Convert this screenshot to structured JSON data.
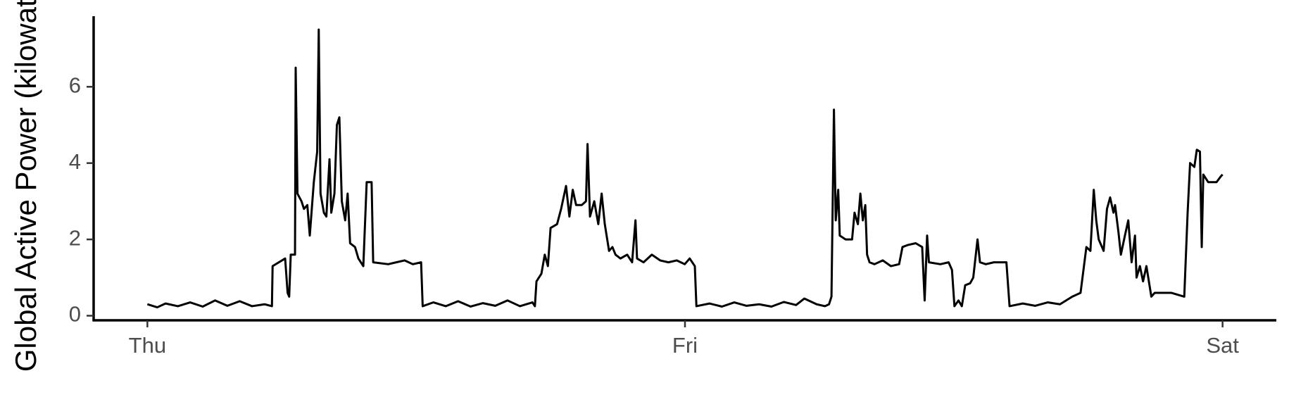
{
  "chart_data": {
    "type": "line",
    "y_label": "Global Active Power (kilowatts)",
    "xlim": [
      -2.4,
      50.4
    ],
    "xticks": [
      {
        "value": 0,
        "label": "Thu"
      },
      {
        "value": 24,
        "label": "Fri"
      },
      {
        "value": 48,
        "label": "Sat"
      }
    ],
    "ylim": [
      -0.12,
      7.85
    ],
    "yticks": [
      0,
      2,
      4,
      6
    ],
    "grid": false,
    "color": "#000000",
    "x": [
      0,
      0.44,
      0.81,
      1.36,
      1.91,
      2.47,
      3.02,
      3.57,
      4.12,
      4.67,
      5.23,
      5.56,
      5.59,
      6.15,
      6.26,
      6.33,
      6.4,
      6.59,
      6.62,
      6.7,
      6.88,
      6.99,
      7.14,
      7.25,
      7.43,
      7.58,
      7.65,
      7.73,
      7.88,
      7.99,
      8.13,
      8.21,
      8.35,
      8.46,
      8.57,
      8.68,
      8.83,
      8.94,
      9.05,
      9.27,
      9.42,
      9.64,
      9.79,
      10.01,
      10.08,
      10.75,
      11.11,
      11.48,
      11.85,
      12.22,
      12.29,
      12.77,
      13.32,
      13.87,
      14.43,
      14.98,
      15.53,
      16.08,
      16.63,
      17.19,
      17.3,
      17.37,
      17.59,
      17.74,
      17.88,
      18.0,
      18.29,
      18.47,
      18.69,
      18.84,
      18.99,
      19.14,
      19.39,
      19.58,
      19.65,
      19.76,
      19.95,
      20.13,
      20.28,
      20.42,
      20.61,
      20.76,
      20.9,
      21.12,
      21.42,
      21.64,
      21.79,
      21.86,
      22.15,
      22.52,
      22.89,
      23.26,
      23.63,
      23.99,
      24.21,
      24.44,
      24.51,
      25.1,
      25.65,
      26.2,
      26.75,
      27.31,
      27.86,
      28.41,
      28.96,
      29.33,
      29.88,
      30.25,
      30.43,
      30.54,
      30.65,
      30.73,
      30.84,
      30.91,
      31.17,
      31.46,
      31.57,
      31.72,
      31.83,
      31.94,
      32.05,
      32.13,
      32.24,
      32.46,
      32.83,
      33.19,
      33.56,
      33.71,
      33.93,
      34.3,
      34.59,
      34.7,
      34.81,
      34.89,
      35.4,
      35.77,
      35.92,
      36.03,
      36.21,
      36.36,
      36.51,
      36.73,
      36.87,
      37.06,
      37.17,
      37.43,
      37.79,
      38.35,
      38.49,
      39.08,
      39.63,
      40.19,
      40.74,
      41.29,
      41.66,
      41.92,
      42.1,
      42.25,
      42.36,
      42.47,
      42.69,
      42.84,
      42.98,
      43.13,
      43.2,
      43.35,
      43.46,
      43.64,
      43.79,
      43.94,
      44.09,
      44.16,
      44.31,
      44.45,
      44.6,
      44.82,
      44.97,
      45.71,
      46.29,
      46.44,
      46.55,
      46.74,
      46.85,
      46.99,
      47.07,
      47.14,
      47.36,
      47.73,
      47.92,
      48.0
    ],
    "values": [
      0.3,
      0.22,
      0.32,
      0.25,
      0.35,
      0.24,
      0.4,
      0.26,
      0.38,
      0.25,
      0.3,
      0.25,
      1.3,
      1.5,
      0.6,
      0.5,
      1.6,
      1.6,
      6.5,
      3.2,
      3.0,
      2.8,
      2.9,
      2.1,
      3.5,
      4.3,
      7.5,
      3.2,
      2.7,
      2.6,
      4.1,
      2.7,
      3.2,
      5.0,
      5.2,
      3.0,
      2.5,
      3.2,
      1.9,
      1.8,
      1.5,
      1.3,
      3.5,
      3.5,
      1.4,
      1.35,
      1.4,
      1.45,
      1.35,
      1.4,
      0.25,
      0.35,
      0.25,
      0.38,
      0.24,
      0.33,
      0.26,
      0.4,
      0.25,
      0.35,
      0.25,
      0.9,
      1.1,
      1.6,
      1.3,
      2.3,
      2.4,
      2.8,
      3.4,
      2.6,
      3.3,
      2.9,
      2.9,
      3.0,
      4.5,
      2.6,
      3.0,
      2.4,
      3.2,
      2.4,
      1.7,
      1.8,
      1.6,
      1.5,
      1.6,
      1.4,
      2.5,
      1.5,
      1.4,
      1.6,
      1.45,
      1.4,
      1.45,
      1.35,
      1.5,
      1.3,
      0.25,
      0.32,
      0.24,
      0.35,
      0.26,
      0.3,
      0.24,
      0.36,
      0.28,
      0.45,
      0.3,
      0.25,
      0.3,
      0.5,
      5.4,
      2.5,
      3.3,
      2.1,
      2.0,
      2.0,
      2.7,
      2.4,
      3.2,
      2.5,
      2.9,
      1.6,
      1.4,
      1.35,
      1.45,
      1.3,
      1.35,
      1.8,
      1.85,
      1.9,
      1.8,
      0.4,
      2.1,
      1.4,
      1.35,
      1.4,
      1.2,
      0.25,
      0.4,
      0.25,
      0.8,
      0.85,
      1.0,
      2.0,
      1.4,
      1.35,
      1.4,
      1.4,
      0.25,
      0.32,
      0.26,
      0.35,
      0.3,
      0.5,
      0.6,
      1.8,
      1.7,
      3.3,
      2.5,
      2.0,
      1.7,
      2.8,
      3.1,
      2.7,
      2.9,
      2.2,
      1.6,
      2.1,
      2.5,
      1.4,
      2.1,
      1.0,
      1.3,
      0.9,
      1.3,
      0.5,
      0.6,
      0.6,
      0.5,
      2.7,
      4.0,
      3.9,
      4.35,
      4.3,
      1.8,
      3.7,
      3.5,
      3.5,
      3.65,
      3.7
    ]
  }
}
